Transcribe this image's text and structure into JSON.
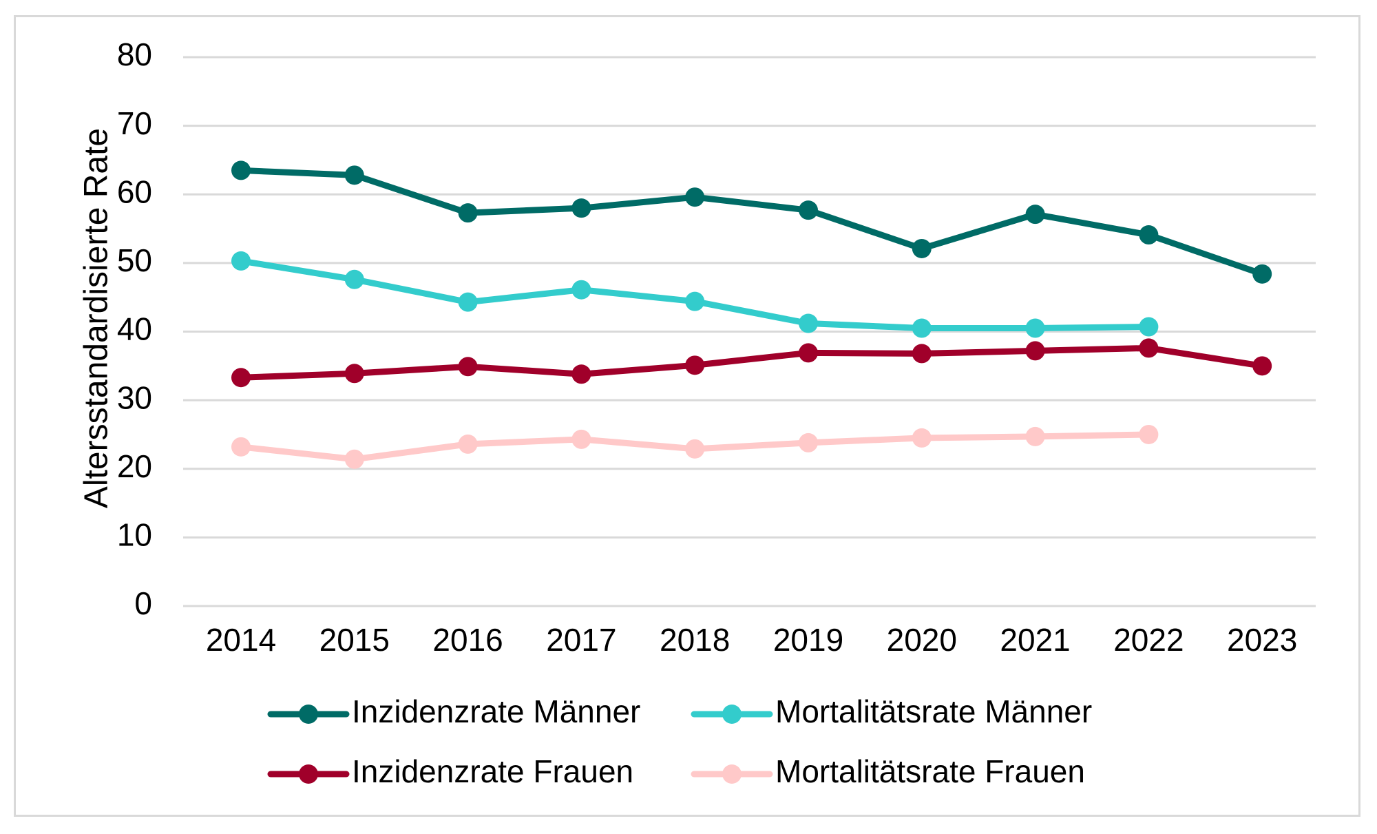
{
  "chart_data": {
    "type": "line",
    "title": "",
    "xlabel": "",
    "ylabel": "Altersstandardisierte Rate",
    "ylim": [
      0,
      80
    ],
    "yticks": [
      0,
      10,
      20,
      30,
      40,
      50,
      60,
      70,
      80
    ],
    "grid": true,
    "legend_position": "bottom",
    "categories": [
      "2014",
      "2015",
      "2016",
      "2017",
      "2018",
      "2019",
      "2020",
      "2021",
      "2022",
      "2023"
    ],
    "series": [
      {
        "name": "Inzidenzrate Männer",
        "color": "#006B66",
        "values": [
          63.5,
          62.8,
          57.3,
          58.0,
          59.6,
          57.7,
          52.1,
          57.1,
          54.1,
          48.4
        ]
      },
      {
        "name": "Mortalitätsrate Männer",
        "color": "#33CCCC",
        "values": [
          50.3,
          47.6,
          44.3,
          46.1,
          44.4,
          41.2,
          40.5,
          40.5,
          40.7,
          null
        ]
      },
      {
        "name": "Inzidenzrate Frauen",
        "color": "#A0002A",
        "values": [
          33.3,
          33.9,
          34.9,
          33.8,
          35.1,
          36.9,
          36.8,
          37.2,
          37.6,
          35.0
        ]
      },
      {
        "name": "Mortalitätsrate Frauen",
        "color": "#FFC9C9",
        "values": [
          23.2,
          21.4,
          23.6,
          24.3,
          22.9,
          23.8,
          24.5,
          24.7,
          25.0,
          null
        ]
      }
    ]
  }
}
